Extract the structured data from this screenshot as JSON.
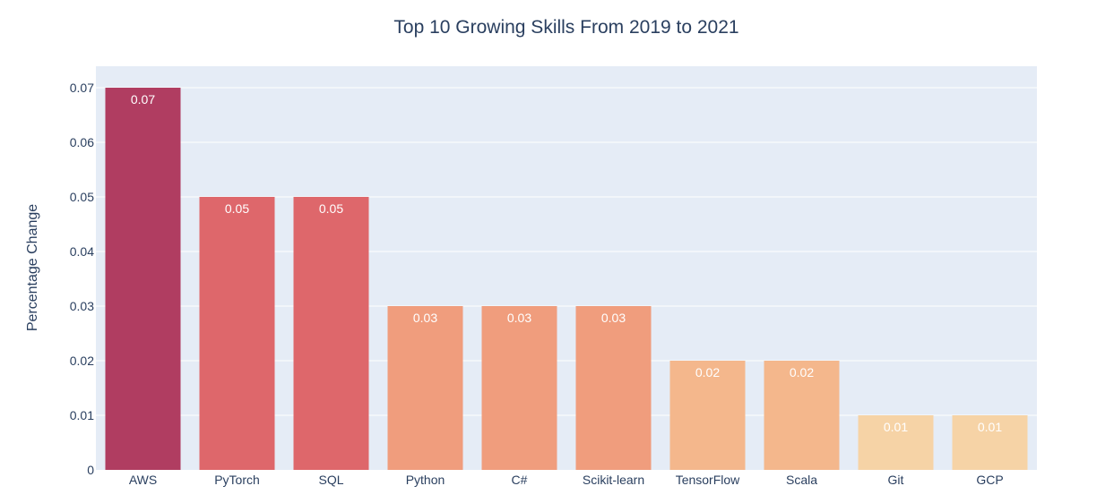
{
  "chart_data": {
    "type": "bar",
    "title": "Top 10 Growing Skills From 2019 to 2021",
    "xlabel": "",
    "ylabel": "Percentage Change",
    "categories": [
      "AWS",
      "PyTorch",
      "SQL",
      "Python",
      "C#",
      "Scikit-learn",
      "TensorFlow",
      "Scala",
      "Git",
      "GCP"
    ],
    "values": [
      0.07,
      0.05,
      0.05,
      0.03,
      0.03,
      0.03,
      0.02,
      0.02,
      0.01,
      0.01
    ],
    "data_labels": [
      "0.07",
      "0.05",
      "0.05",
      "0.03",
      "0.03",
      "0.03",
      "0.02",
      "0.02",
      "0.01",
      "0.01"
    ],
    "bar_colors": [
      "#b03d61",
      "#de676b",
      "#de676b",
      "#f09d7d",
      "#f09d7d",
      "#f09d7d",
      "#f4b78c",
      "#f4b78c",
      "#f6d3a6",
      "#f6d3a6"
    ],
    "ylim": [
      0,
      0.07
    ],
    "yticks": [
      0,
      0.01,
      0.02,
      0.03,
      0.04,
      0.05,
      0.06,
      0.07
    ],
    "ytick_labels": [
      "0",
      "0.01",
      "0.02",
      "0.03",
      "0.04",
      "0.05",
      "0.06",
      "0.07"
    ],
    "grid": true,
    "legend": "none",
    "plot_background": "#e5ecf6",
    "grid_color": "#ffffff",
    "text_color": "#2a3f5f",
    "data_label_color": "#ffffff"
  }
}
